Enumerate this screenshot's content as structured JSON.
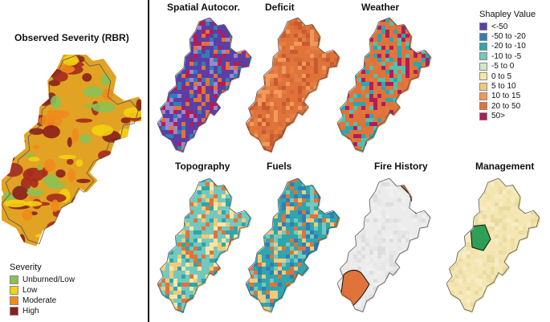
{
  "observed": {
    "title": "Observed Severity (RBR)"
  },
  "panels": [
    {
      "id": "spatial",
      "title": "Spatial Autocor.",
      "palette": [
        "#5b3ea6",
        "#b01d5b",
        "#e0733a",
        "#2f7fb6",
        "#9f86c9"
      ]
    },
    {
      "id": "deficit",
      "title": "Deficit",
      "palette": [
        "#e0733a",
        "#e57e42",
        "#d46a35",
        "#f09a5a",
        "#c95a30"
      ]
    },
    {
      "id": "weather",
      "title": "Weather",
      "palette": [
        "#e0733a",
        "#e07a3f",
        "#2fa5ad",
        "#56c0a8",
        "#b01d5b"
      ]
    },
    {
      "id": "topography",
      "title": "Topography",
      "palette": [
        "#74c8bd",
        "#f2c979",
        "#e0733a",
        "#2fa5ad",
        "#f7e6a8"
      ]
    },
    {
      "id": "fuels",
      "title": "Fuels",
      "palette": [
        "#2fa5ad",
        "#e0733a",
        "#f2c979",
        "#74c8bd",
        "#2f7fb6"
      ]
    },
    {
      "id": "firehistory",
      "title": "Fire History",
      "palette": [
        "#ececec",
        "#e6e6e6",
        "#f0f0f0",
        "#dedede",
        "#ebebeb"
      ]
    },
    {
      "id": "management",
      "title": "Management",
      "palette": [
        "#f4e7b4",
        "#efe0a6",
        "#f7ecc3",
        "#eadba0",
        "#f3e5b0"
      ]
    }
  ],
  "shapley_legend": {
    "title": "Shapley Value",
    "items": [
      {
        "label": "<-50",
        "color": "#5b3ea6"
      },
      {
        "label": "-50 to -20",
        "color": "#2f7fb6"
      },
      {
        "label": "-20 to -10",
        "color": "#2fa5ad"
      },
      {
        "label": "-10 to -5",
        "color": "#74c8bd"
      },
      {
        "label": "-5 to 0",
        "color": "#cfeac0"
      },
      {
        "label": "0 to 5",
        "color": "#f7e6a8"
      },
      {
        "label": "5 to 10",
        "color": "#f2c979"
      },
      {
        "label": "10 to 15",
        "color": "#f09a5a"
      },
      {
        "label": "20 to 50",
        "color": "#e0733a"
      },
      {
        "label": "50>",
        "color": "#b01d5b"
      }
    ]
  },
  "severity_legend": {
    "title": "Severity",
    "items": [
      {
        "label": "Unburned/Low",
        "color": "#8cc152"
      },
      {
        "label": "Low",
        "color": "#f4d20f"
      },
      {
        "label": "Moderate",
        "color": "#f08a1c"
      },
      {
        "label": "High",
        "color": "#8b1f1a"
      }
    ]
  }
}
